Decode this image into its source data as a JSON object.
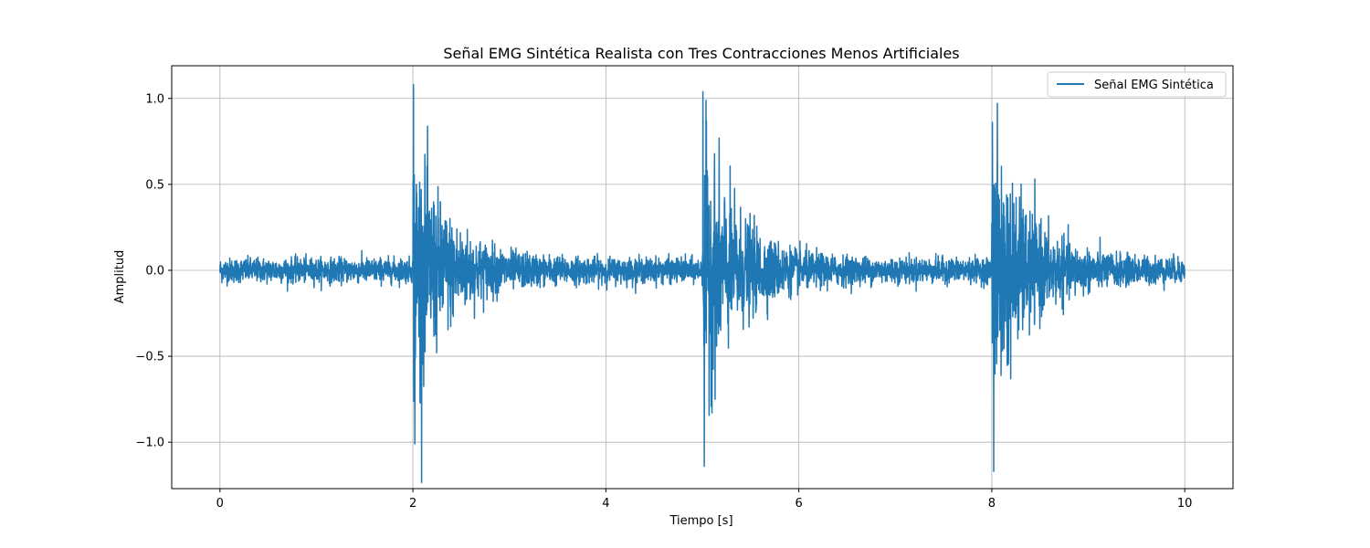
{
  "chart_data": {
    "type": "line",
    "title": "Señal EMG Sintética Realista con Tres Contracciones Menos Artificiales",
    "xlabel": "Tiempo [s]",
    "ylabel": "Amplitud",
    "xlim": [
      -0.5,
      10.5
    ],
    "ylim": [
      -1.27,
      1.19
    ],
    "xticks": [
      0,
      2,
      4,
      6,
      8,
      10
    ],
    "xtick_labels": [
      "0",
      "2",
      "4",
      "6",
      "8",
      "10"
    ],
    "yticks": [
      -1.0,
      -0.5,
      0.0,
      0.5,
      1.0
    ],
    "ytick_labels": [
      "−1.0",
      "−0.5",
      "0.0",
      "0.5",
      "1.0"
    ],
    "grid": true,
    "legend_position": "top-right",
    "series": [
      {
        "name": "Señal EMG Sintética",
        "color": "#1f77b4",
        "baseline_noise_amplitude": 0.1,
        "contractions": [
          {
            "onset": 2,
            "peak_positive": 1.08,
            "peak_negative": -1.01,
            "decay_end": 3.2
          },
          {
            "onset": 5,
            "peak_positive": 1.04,
            "peak_negative": -1.14,
            "decay_end": 6.2
          },
          {
            "onset": 8,
            "peak_positive": 0.86,
            "peak_negative": -1.17,
            "decay_end": 9.2
          }
        ],
        "x_range": [
          0,
          10
        ]
      }
    ]
  }
}
